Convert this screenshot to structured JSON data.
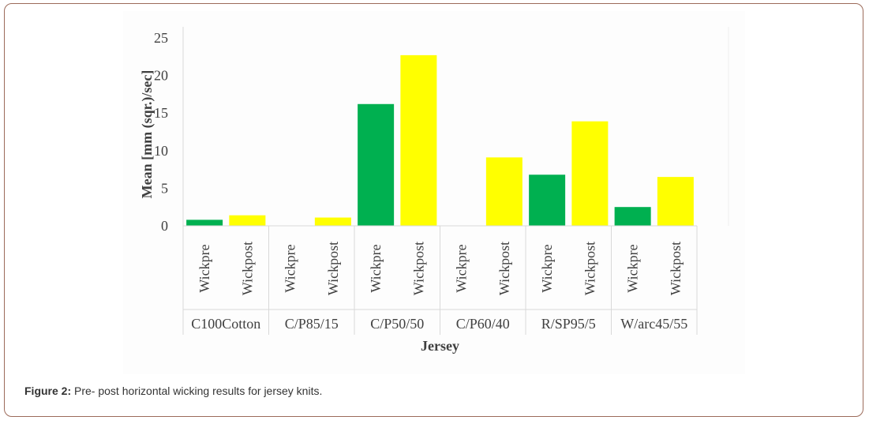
{
  "caption": {
    "label": "Figure 2:",
    "text": " Pre- post horizontal wicking results for jersey knits."
  },
  "colors": {
    "Wickpre": "#00b050",
    "Wickpost": "#ffff00",
    "axis": "#d9d9d9",
    "text": "#404040",
    "frame_border": "#9c6b5a",
    "chart_background": "#fdfdfd"
  },
  "chart_data": {
    "type": "bar",
    "title": "",
    "ylabel": "Mean [mm (sqr.)/sec]",
    "xlabel": "Jersey",
    "ylim": [
      0,
      25
    ],
    "yticks": [
      0,
      5,
      10,
      15,
      20,
      25
    ],
    "grid": false,
    "legend": "none",
    "groups": [
      {
        "label": "C100Cotton",
        "bars": [
          {
            "label": "Wickpre",
            "value": 0.8
          },
          {
            "label": "Wickpost",
            "value": 1.4
          }
        ]
      },
      {
        "label": "C/P85/15",
        "bars": [
          {
            "label": "Wickpre",
            "value": 0
          },
          {
            "label": "Wickpost",
            "value": 1.1
          }
        ]
      },
      {
        "label": "C/P50/50",
        "bars": [
          {
            "label": "Wickpre",
            "value": 16.2
          },
          {
            "label": "Wickpost",
            "value": 22.7
          }
        ]
      },
      {
        "label": "C/P60/40",
        "bars": [
          {
            "label": "Wickpre",
            "value": 0
          },
          {
            "label": "Wickpost",
            "value": 9.1
          }
        ]
      },
      {
        "label": "R/SP95/5",
        "bars": [
          {
            "label": "Wickpre",
            "value": 6.8
          },
          {
            "label": "Wickpost",
            "value": 13.9
          }
        ]
      },
      {
        "label": "W/arc45/55",
        "bars": [
          {
            "label": "Wickpre",
            "value": 2.5
          },
          {
            "label": "Wickpost",
            "value": 6.5
          }
        ]
      }
    ]
  }
}
